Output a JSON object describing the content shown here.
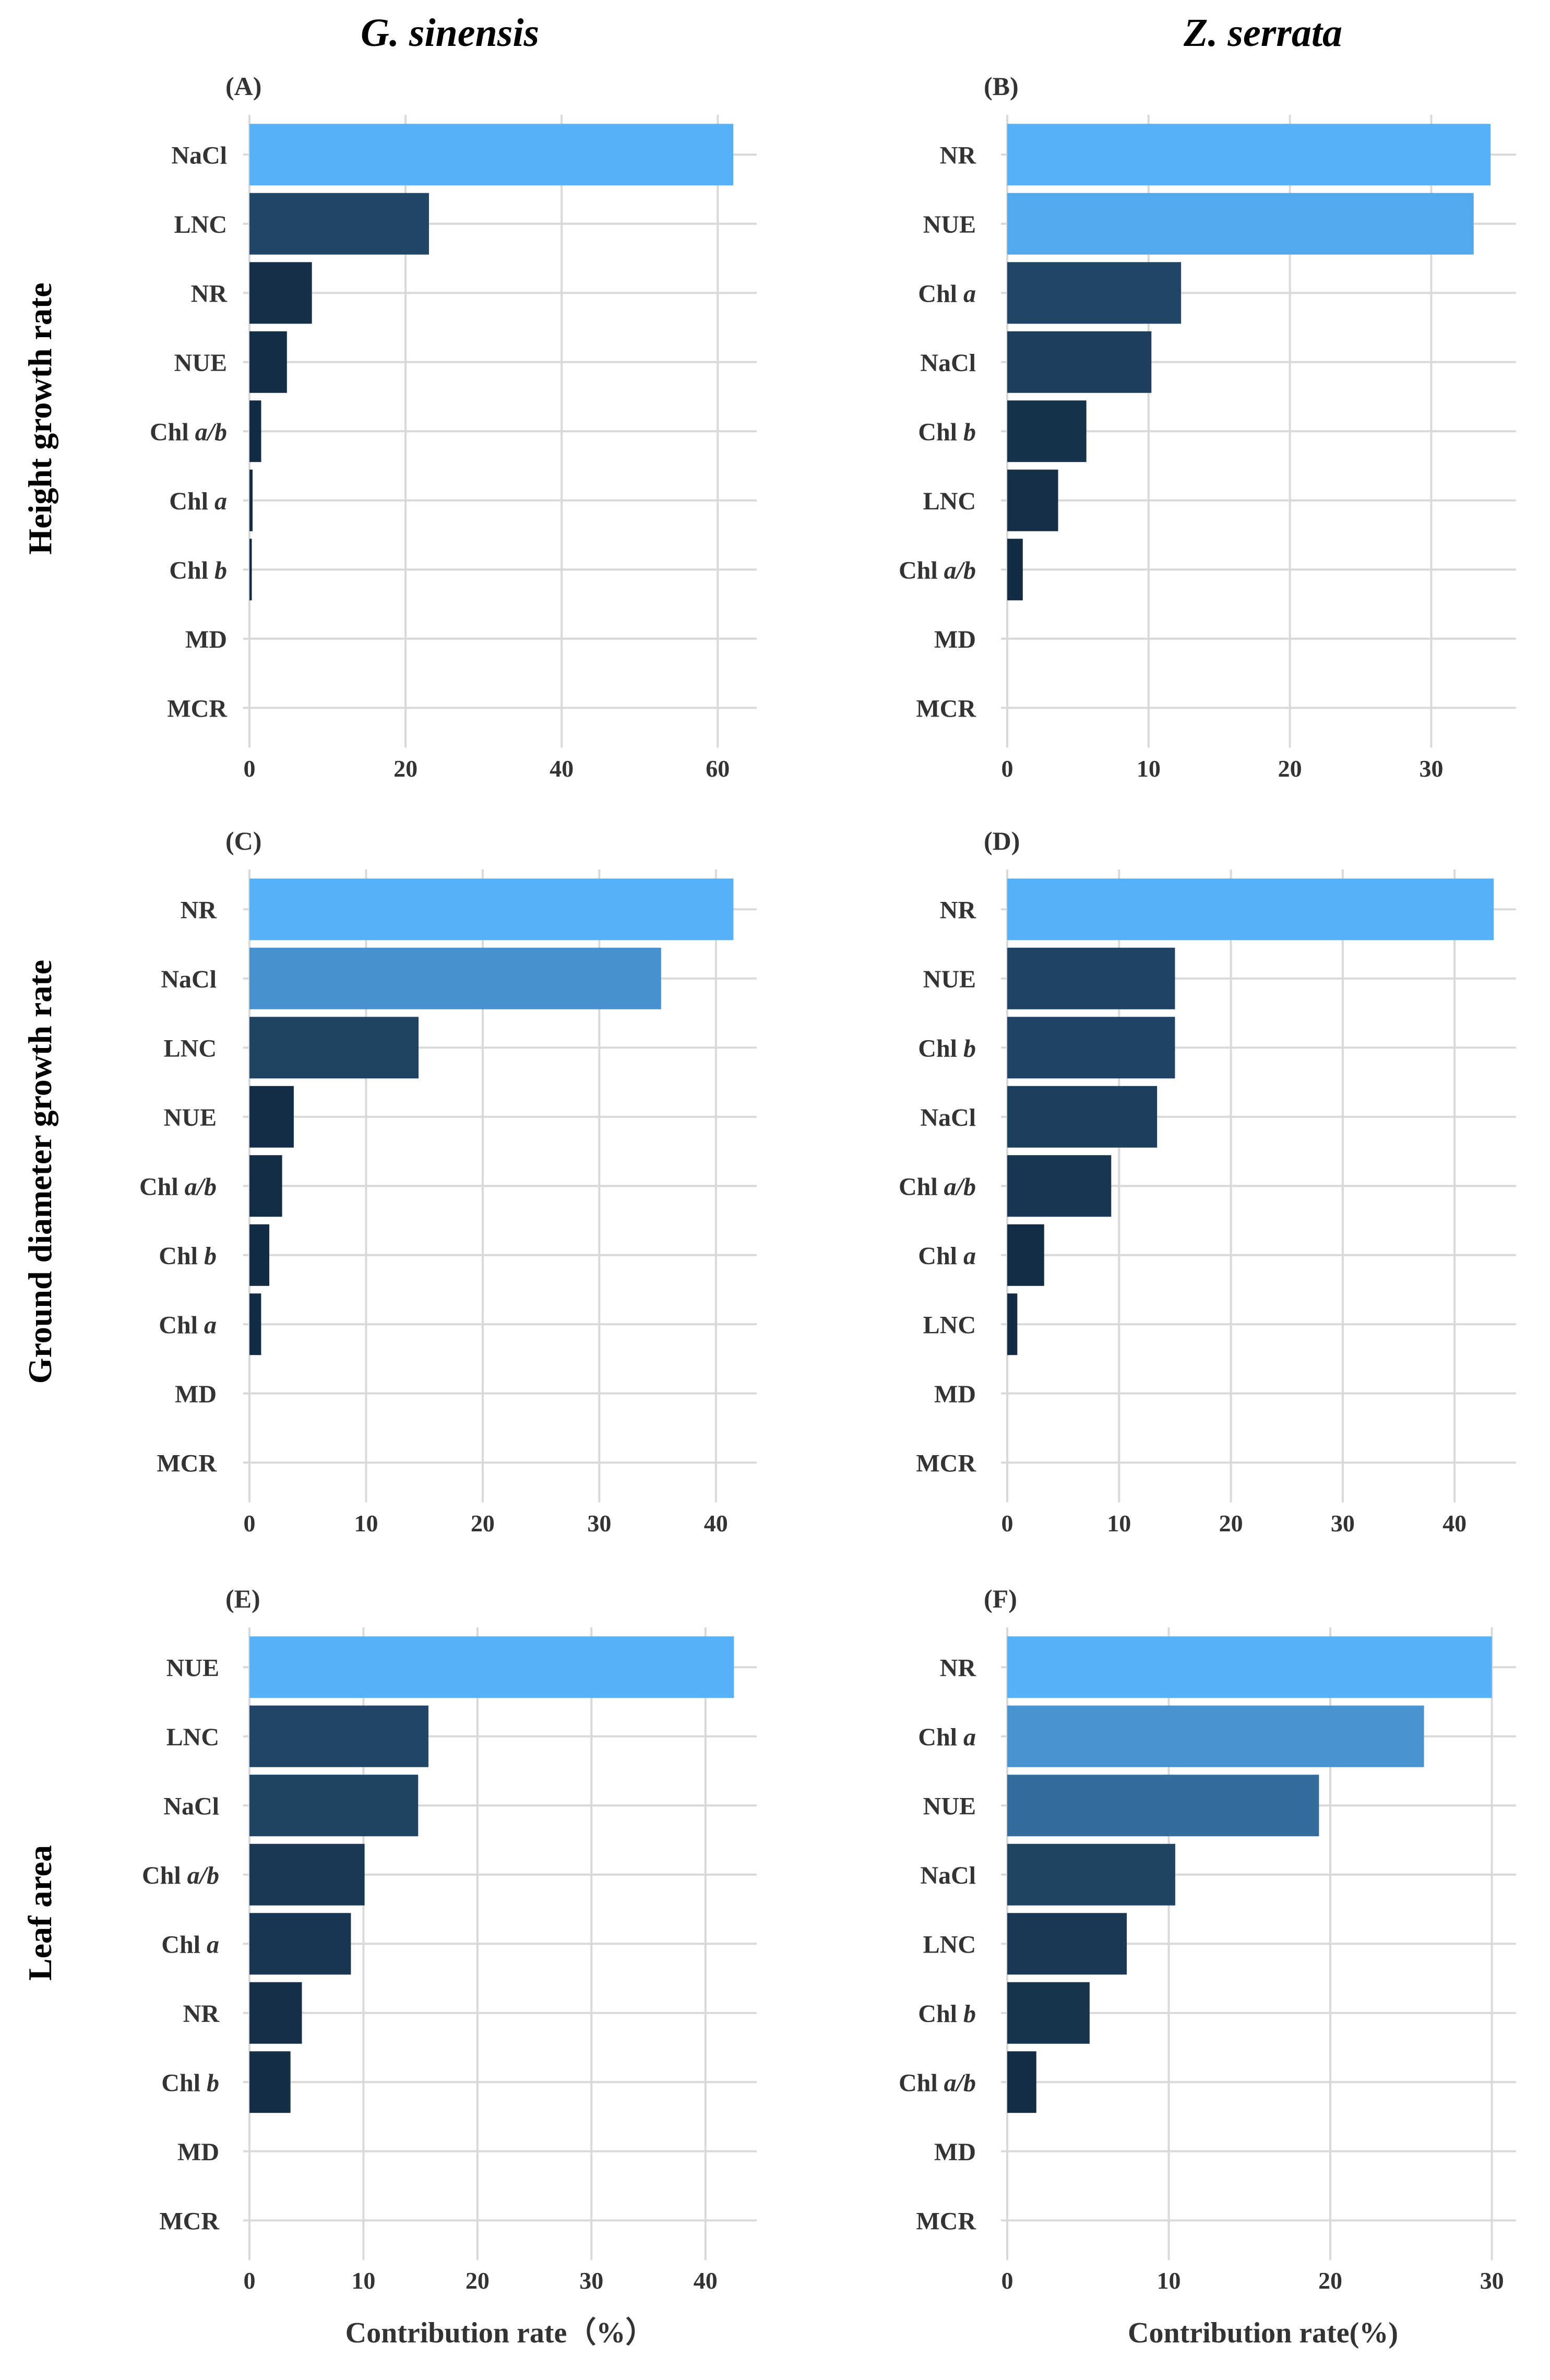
{
  "column_titles": {
    "left": "G. sinensis",
    "right": "Z. serrata"
  },
  "row_titles": [
    "Height growth rate",
    "Ground diameter growth rate",
    "Leaf area"
  ],
  "xlabels": {
    "left": "Contribution rate（%）",
    "right": "Contribution rate(%)"
  },
  "colors": {
    "high": "#56b1f7",
    "low": "#132b43",
    "grid": "#d9d9d9"
  },
  "chart_data": [
    {
      "panel": "(A)",
      "type": "bar",
      "orientation": "horizontal",
      "categories": [
        "NaCl",
        "LNC",
        "NR",
        "NUE",
        "Chl a/b",
        "Chl a",
        "Chl b",
        "MD",
        "MCR"
      ],
      "values": [
        62,
        23,
        8,
        4.8,
        1.5,
        0.4,
        0.3,
        0,
        0
      ],
      "xlim": [
        0,
        65
      ],
      "ticks": [
        0,
        20,
        40,
        60
      ]
    },
    {
      "panel": "(B)",
      "type": "bar",
      "orientation": "horizontal",
      "categories": [
        "NR",
        "NUE",
        "Chl a",
        "NaCl",
        "Chl b",
        "LNC",
        "Chl a/b",
        "MD",
        "MCR"
      ],
      "values": [
        34.2,
        33,
        12.3,
        10.2,
        5.6,
        3.6,
        1.1,
        0,
        0
      ],
      "xlim": [
        0,
        36
      ],
      "ticks": [
        0,
        10,
        20,
        30
      ]
    },
    {
      "panel": "(C)",
      "type": "bar",
      "orientation": "horizontal",
      "categories": [
        "NR",
        "NaCl",
        "LNC",
        "NUE",
        "Chl a/b",
        "Chl b",
        "Chl a",
        "MD",
        "MCR"
      ],
      "values": [
        41.5,
        35.3,
        14.5,
        3.8,
        2.8,
        1.7,
        1.0,
        0,
        0
      ],
      "xlim": [
        0,
        43.5
      ],
      "ticks": [
        0,
        10,
        20,
        30,
        40
      ]
    },
    {
      "panel": "(D)",
      "type": "bar",
      "orientation": "horizontal",
      "categories": [
        "NR",
        "NUE",
        "Chl b",
        "NaCl",
        "Chl a/b",
        "Chl a",
        "LNC",
        "MD",
        "MCR"
      ],
      "values": [
        43.5,
        15,
        15,
        13.4,
        9.3,
        3.3,
        0.9,
        0,
        0
      ],
      "xlim": [
        0,
        45.5
      ],
      "ticks": [
        0,
        10,
        20,
        30,
        40
      ]
    },
    {
      "panel": "(E)",
      "type": "bar",
      "orientation": "horizontal",
      "categories": [
        "NUE",
        "LNC",
        "NaCl",
        "Chl a/b",
        "Chl a",
        "NR",
        "Chl b",
        "MD",
        "MCR"
      ],
      "values": [
        42.5,
        15.7,
        14.8,
        10.1,
        8.9,
        4.6,
        3.6,
        0,
        0
      ],
      "xlim": [
        0,
        44.5
      ],
      "ticks": [
        0,
        10,
        20,
        30,
        40
      ]
    },
    {
      "panel": "(F)",
      "type": "bar",
      "orientation": "horizontal",
      "categories": [
        "NR",
        "Chl a",
        "NUE",
        "NaCl",
        "LNC",
        "Chl b",
        "Chl a/b",
        "MD",
        "MCR"
      ],
      "values": [
        30,
        25.8,
        19.3,
        10.4,
        7.4,
        5.1,
        1.8,
        0,
        0
      ],
      "xlim": [
        0,
        31.5
      ],
      "ticks": [
        0,
        10,
        20,
        30
      ]
    }
  ]
}
